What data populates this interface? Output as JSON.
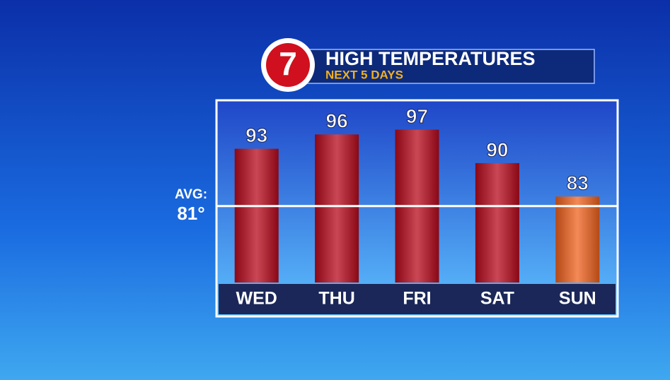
{
  "chart_data": {
    "type": "bar",
    "logo": "7",
    "title": "HIGH TEMPERATURES",
    "subtitle": "NEXT 5 DAYS",
    "categories": [
      "WED",
      "THU",
      "FRI",
      "SAT",
      "SUN"
    ],
    "values": [
      93,
      96,
      97,
      90,
      83
    ],
    "colors": [
      "#b80a1c",
      "#b80a1c",
      "#b80a1c",
      "#b80a1c",
      "#f0621e"
    ],
    "ylim": [
      65,
      103
    ],
    "reference_line": {
      "label": "AVG:",
      "value": 81,
      "value_label": "81°"
    }
  }
}
